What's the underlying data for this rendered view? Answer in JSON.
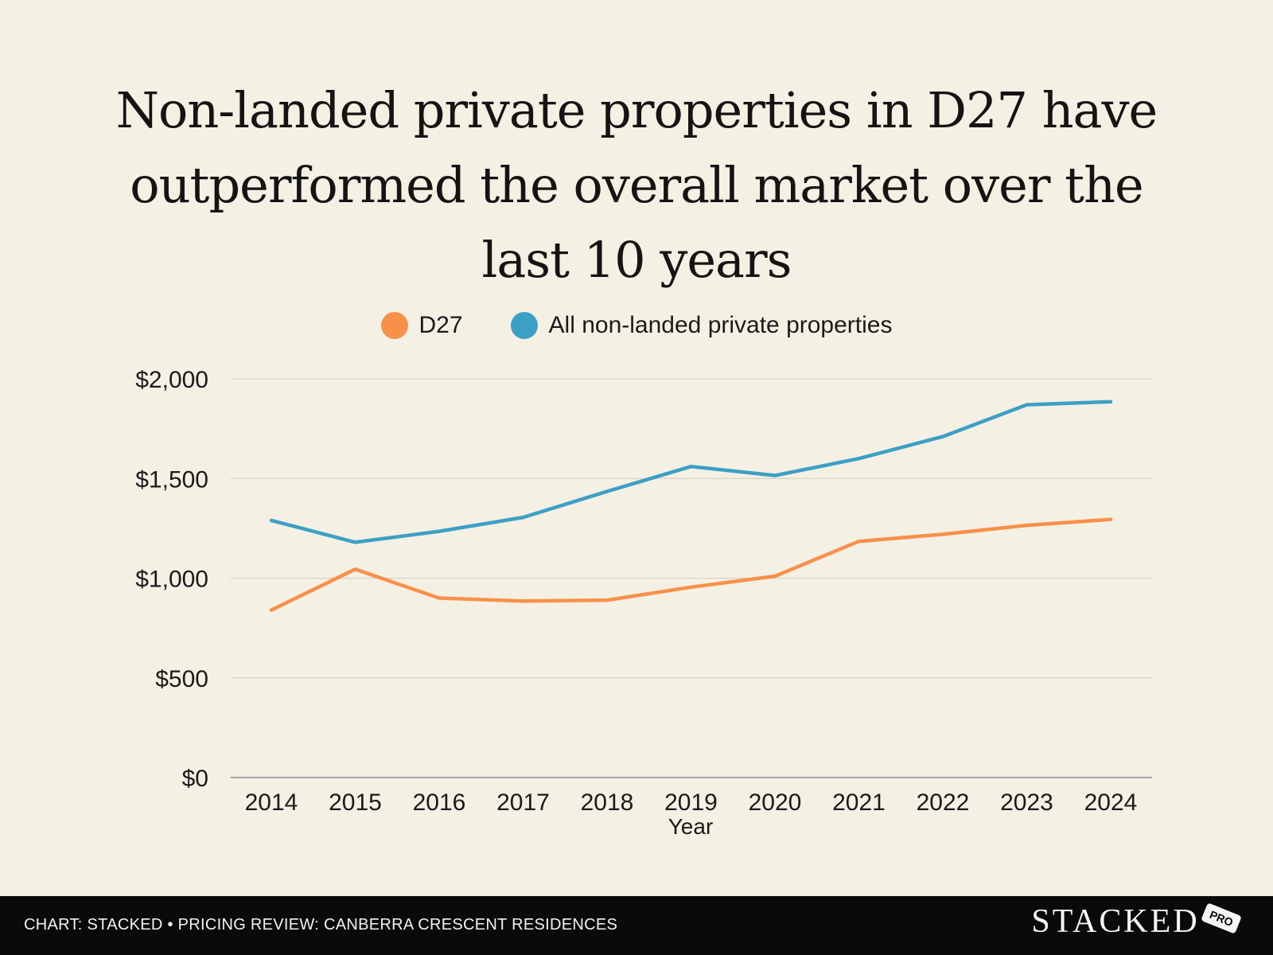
{
  "title": "Non-landed private properties in D27 have outperformed the overall market over the last 10 years",
  "footer": {
    "credit": "CHART: STACKED • PRICING REVIEW: CANBERRA CRESCENT RESIDENCES",
    "brand": "STACKED",
    "badge": "PRO"
  },
  "chart_data": {
    "type": "line",
    "xlabel": "Year",
    "ylabel": "",
    "x": [
      "2014",
      "2015",
      "2016",
      "2017",
      "2018",
      "2019",
      "2020",
      "2021",
      "2022",
      "2023",
      "2024"
    ],
    "ylim": [
      0,
      2000
    ],
    "yticks": [
      "$0",
      "$500",
      "$1,000",
      "$1,500",
      "$2,000"
    ],
    "ytick_values": [
      0,
      500,
      1000,
      1500,
      2000
    ],
    "grid": true,
    "legend_position": "top",
    "series": [
      {
        "name": "D27",
        "color": "#f7914a",
        "values": [
          840,
          1045,
          900,
          885,
          890,
          955,
          1010,
          1185,
          1220,
          1265,
          1295
        ]
      },
      {
        "name": "All non-landed private properties",
        "color": "#3c9fc4",
        "values": [
          1290,
          1180,
          1235,
          1305,
          1435,
          1560,
          1515,
          1600,
          1710,
          1870,
          1885
        ]
      }
    ]
  }
}
